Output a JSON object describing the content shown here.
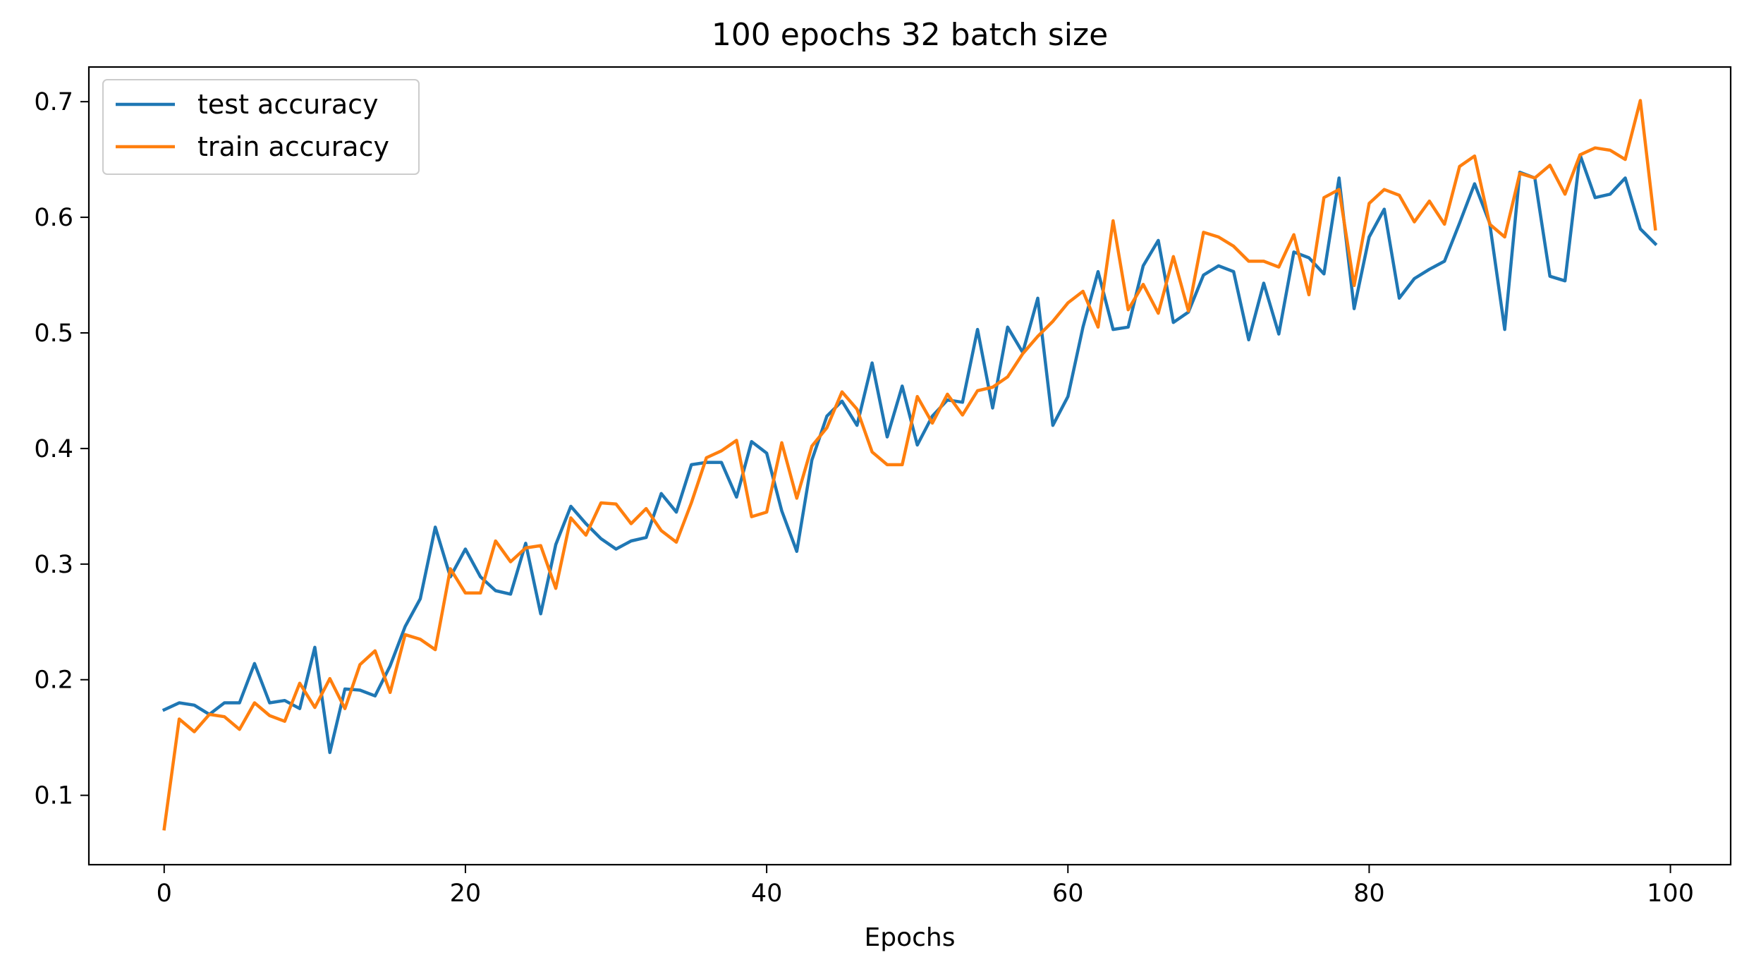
{
  "chart_data": {
    "type": "line",
    "title": "100 epochs 32 batch size",
    "xlabel": "Epochs",
    "ylabel": "",
    "xlim": [
      -5,
      104
    ],
    "ylim": [
      0.04,
      0.73
    ],
    "xticks": [
      0,
      20,
      40,
      60,
      80,
      100
    ],
    "yticks": [
      0.1,
      0.2,
      0.3,
      0.4,
      0.5,
      0.6,
      0.7
    ],
    "xtick_labels": [
      "0",
      "20",
      "40",
      "60",
      "80",
      "100"
    ],
    "ytick_labels": [
      "0.1",
      "0.2",
      "0.3",
      "0.4",
      "0.5",
      "0.6",
      "0.7"
    ],
    "grid": false,
    "legend_position": "top-left",
    "x": [
      0,
      1,
      2,
      3,
      4,
      5,
      6,
      7,
      8,
      9,
      10,
      11,
      12,
      13,
      14,
      15,
      16,
      17,
      18,
      19,
      20,
      21,
      22,
      23,
      24,
      25,
      26,
      27,
      28,
      29,
      30,
      31,
      32,
      33,
      34,
      35,
      36,
      37,
      38,
      39,
      40,
      41,
      42,
      43,
      44,
      45,
      46,
      47,
      48,
      49,
      50,
      51,
      52,
      53,
      54,
      55,
      56,
      57,
      58,
      59,
      60,
      61,
      62,
      63,
      64,
      65,
      66,
      67,
      68,
      69,
      70,
      71,
      72,
      73,
      74,
      75,
      76,
      77,
      78,
      79,
      80,
      81,
      82,
      83,
      84,
      85,
      86,
      87,
      88,
      89,
      90,
      91,
      92,
      93,
      94,
      95,
      96,
      97,
      98,
      99
    ],
    "series": [
      {
        "name": "test accuracy",
        "color": "#1f77b4",
        "values": [
          0.174,
          0.18,
          0.178,
          0.17,
          0.18,
          0.18,
          0.214,
          0.18,
          0.182,
          0.175,
          0.228,
          0.137,
          0.192,
          0.191,
          0.186,
          0.212,
          0.246,
          0.27,
          0.332,
          0.289,
          0.313,
          0.289,
          0.277,
          0.274,
          0.318,
          0.257,
          0.317,
          0.35,
          0.335,
          0.322,
          0.313,
          0.32,
          0.323,
          0.361,
          0.345,
          0.386,
          0.388,
          0.388,
          0.358,
          0.406,
          0.396,
          0.346,
          0.311,
          0.39,
          0.428,
          0.441,
          0.42,
          0.474,
          0.41,
          0.454,
          0.403,
          0.428,
          0.442,
          0.44,
          0.503,
          0.435,
          0.505,
          0.483,
          0.53,
          0.42,
          0.445,
          0.505,
          0.553,
          0.503,
          0.505,
          0.558,
          0.58,
          0.509,
          0.518,
          0.55,
          0.558,
          0.553,
          0.494,
          0.543,
          0.499,
          0.57,
          0.565,
          0.551,
          0.634,
          0.521,
          0.583,
          0.607,
          0.53,
          0.547,
          0.555,
          0.562,
          0.595,
          0.629,
          0.595,
          0.503,
          0.639,
          0.634,
          0.549,
          0.545,
          0.654,
          0.617,
          0.62,
          0.634,
          0.59,
          0.577
        ]
      },
      {
        "name": "train accuracy",
        "color": "#ff7f0e",
        "values": [
          0.071,
          0.166,
          0.155,
          0.17,
          0.168,
          0.157,
          0.18,
          0.169,
          0.164,
          0.197,
          0.176,
          0.201,
          0.175,
          0.213,
          0.225,
          0.189,
          0.239,
          0.235,
          0.226,
          0.296,
          0.275,
          0.275,
          0.32,
          0.302,
          0.314,
          0.316,
          0.279,
          0.34,
          0.325,
          0.353,
          0.352,
          0.335,
          0.348,
          0.329,
          0.319,
          0.353,
          0.392,
          0.398,
          0.407,
          0.341,
          0.345,
          0.405,
          0.357,
          0.402,
          0.418,
          0.449,
          0.434,
          0.397,
          0.386,
          0.386,
          0.445,
          0.422,
          0.447,
          0.429,
          0.45,
          0.453,
          0.462,
          0.482,
          0.497,
          0.51,
          0.526,
          0.536,
          0.505,
          0.597,
          0.52,
          0.542,
          0.517,
          0.566,
          0.519,
          0.587,
          0.583,
          0.575,
          0.562,
          0.562,
          0.557,
          0.585,
          0.533,
          0.617,
          0.624,
          0.541,
          0.612,
          0.624,
          0.619,
          0.596,
          0.614,
          0.594,
          0.644,
          0.653,
          0.594,
          0.583,
          0.638,
          0.634,
          0.645,
          0.62,
          0.654,
          0.66,
          0.658,
          0.65,
          0.701,
          0.59
        ]
      }
    ]
  }
}
